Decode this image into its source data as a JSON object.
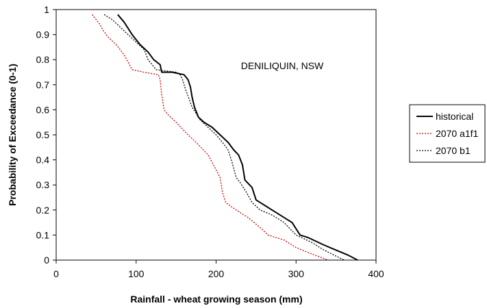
{
  "chart_data": {
    "type": "line",
    "xlabel": "Rainfall - wheat growing season (mm)",
    "ylabel": "Probability of Exceedance (0-1)",
    "annotation": "DENILIQUIN, NSW",
    "xlim": [
      0,
      400
    ],
    "ylim": [
      0,
      1
    ],
    "xticks": [
      "0",
      "100",
      "200",
      "300",
      "400"
    ],
    "yticks": [
      "0",
      "0.1",
      "0.2",
      "0.3",
      "0.4",
      "0.5",
      "0.6",
      "0.7",
      "0.8",
      "0.9",
      "1"
    ],
    "grid": false,
    "legend_position": "right",
    "series": [
      {
        "name": "historical",
        "color": "#000000",
        "style": "solid",
        "x": [
          77,
          85,
          95,
          105,
          115,
          122,
          130,
          132,
          145,
          160,
          165,
          168,
          170,
          173,
          178,
          185,
          195,
          205,
          215,
          222,
          228,
          233,
          236,
          245,
          250,
          260,
          270,
          285,
          295,
          305,
          315,
          335,
          350,
          365,
          377
        ],
        "y": [
          0.98,
          0.95,
          0.9,
          0.86,
          0.83,
          0.8,
          0.78,
          0.75,
          0.75,
          0.74,
          0.72,
          0.69,
          0.65,
          0.61,
          0.57,
          0.55,
          0.53,
          0.5,
          0.47,
          0.44,
          0.42,
          0.38,
          0.32,
          0.29,
          0.24,
          0.22,
          0.2,
          0.17,
          0.15,
          0.1,
          0.09,
          0.06,
          0.04,
          0.02,
          0
        ]
      },
      {
        "name": "2070 a1f1",
        "color": "#cc0000",
        "style": "dotted",
        "x": [
          45,
          55,
          58,
          65,
          75,
          85,
          90,
          95,
          110,
          128,
          130,
          132,
          135,
          140,
          150,
          165,
          175,
          190,
          195,
          205,
          208,
          212,
          225,
          240,
          255,
          265,
          275,
          285,
          300,
          315,
          340
        ],
        "y": [
          0.98,
          0.94,
          0.92,
          0.89,
          0.86,
          0.82,
          0.79,
          0.76,
          0.75,
          0.74,
          0.72,
          0.66,
          0.6,
          0.58,
          0.55,
          0.5,
          0.47,
          0.42,
          0.39,
          0.33,
          0.27,
          0.23,
          0.2,
          0.17,
          0.13,
          0.1,
          0.09,
          0.08,
          0.05,
          0.03,
          0
        ]
      },
      {
        "name": "2070 b1",
        "color": "#000000",
        "style": "dotted",
        "x": [
          60,
          70,
          80,
          90,
          100,
          110,
          115,
          120,
          125,
          150,
          155,
          158,
          162,
          170,
          180,
          190,
          200,
          208,
          215,
          220,
          225,
          230,
          238,
          245,
          255,
          270,
          285,
          300,
          320,
          335,
          360
        ],
        "y": [
          0.98,
          0.96,
          0.93,
          0.9,
          0.87,
          0.84,
          0.8,
          0.78,
          0.76,
          0.75,
          0.74,
          0.72,
          0.68,
          0.61,
          0.56,
          0.53,
          0.5,
          0.47,
          0.44,
          0.39,
          0.33,
          0.31,
          0.27,
          0.23,
          0.2,
          0.18,
          0.15,
          0.1,
          0.07,
          0.04,
          0
        ]
      }
    ]
  }
}
